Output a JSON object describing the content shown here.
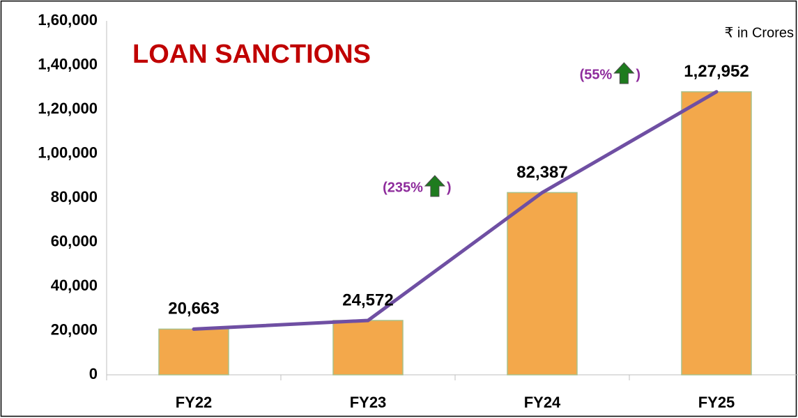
{
  "chart_data": {
    "type": "bar",
    "title": "LOAN SANCTIONS",
    "unit_note": "₹ in Crores",
    "categories": [
      "FY22",
      "FY23",
      "FY24",
      "FY25"
    ],
    "values": [
      20663,
      24572,
      82387,
      127952
    ],
    "value_labels": [
      "20,663",
      "24,572",
      "82,387",
      "1,27,952"
    ],
    "color": "#f3a84b",
    "line_color": "#6f4fa3",
    "ylim": [
      0,
      160000
    ],
    "yticks": [
      0,
      {
        "value": 20000,
        "label": "20,000"
      },
      {
        "value": 40000,
        "label": "40,000"
      },
      {
        "value": 60000,
        "label": "60,000"
      },
      {
        "value": 80000,
        "label": "80,000"
      },
      {
        "value": 100000,
        "label": "1,00,000"
      },
      {
        "value": 120000,
        "label": "1,20,000"
      },
      {
        "value": 140000,
        "label": "1,40,000"
      },
      {
        "value": 160000,
        "label": "1,60,000"
      }
    ],
    "annotations": [
      {
        "text": "(235%",
        "close": ")"
      },
      {
        "text": "(55%",
        "close": ")"
      }
    ]
  }
}
